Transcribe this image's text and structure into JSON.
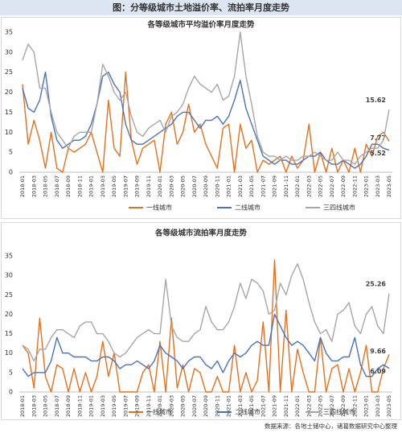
{
  "title": "图：分等级城市土地溢价率、流拍率月度走势",
  "source": "数据来源：各地土储中心，诸葛数据研究中心整理",
  "chart_data": [
    {
      "type": "line",
      "title": "各等级城市平均溢价率月度走势",
      "categories": [
        "2018-01",
        null,
        "2018-03",
        null,
        "2018-05",
        null,
        "2018-07",
        null,
        "2018-09",
        null,
        "2018-11",
        null,
        "2019-01",
        null,
        "2019-03",
        null,
        "2019-05",
        null,
        "2019-07",
        null,
        "2019-09",
        null,
        "2019-11",
        null,
        "2020-01",
        null,
        "2020-03",
        null,
        "2020-05",
        null,
        "2020-07",
        null,
        "2020-09",
        null,
        "2020-11",
        null,
        "2021-01",
        null,
        "2021-03",
        null,
        "2021-05",
        null,
        "2021-07",
        null,
        "2021-09",
        null,
        "2021-11",
        null,
        "2022-01",
        null,
        "2022-03",
        null,
        "2022-05",
        null,
        "2022-07",
        null,
        "2022-09",
        null,
        "2022-11",
        null,
        "2023-01",
        null,
        "2023-03",
        null,
        "2023-05"
      ],
      "ylim": [
        0,
        35
      ],
      "yticks": [
        0,
        5,
        10,
        15,
        20,
        25,
        30,
        35
      ],
      "grid": false,
      "data_labels": "last",
      "legend": "bottom",
      "series": [
        {
          "name": "一线城市",
          "color": "#E2711D",
          "values": [
            22,
            7,
            13,
            8,
            1,
            10,
            1,
            0,
            6,
            5,
            6,
            7,
            10,
            5,
            0,
            18,
            6,
            4,
            25,
            8,
            2,
            6,
            7,
            8,
            0,
            12,
            15,
            7,
            10,
            17,
            10,
            12,
            7,
            4,
            1,
            11,
            12,
            0,
            12,
            6,
            8,
            0,
            3,
            2,
            3,
            4,
            0,
            4,
            1,
            3,
            12,
            0,
            5,
            0,
            6,
            0,
            3,
            0,
            6,
            0,
            7,
            4,
            9,
            10,
            7.77
          ]
        },
        {
          "name": "二线城市",
          "color": "#4A72B8",
          "values": [
            21,
            16,
            15,
            18,
            25,
            14,
            8,
            6,
            7,
            8,
            8,
            9,
            12,
            17,
            24,
            25,
            22,
            20,
            12,
            8,
            7,
            7,
            8,
            9,
            10,
            11,
            12,
            14,
            15,
            15,
            13,
            11,
            13,
            13,
            14,
            12,
            14,
            18,
            23,
            16,
            12,
            8,
            4,
            3,
            2,
            3,
            3,
            2,
            2,
            3,
            4,
            4,
            5,
            3,
            2,
            2,
            3,
            2,
            1,
            2,
            4,
            7,
            7,
            6,
            5.52
          ]
        },
        {
          "name": "三四线城市",
          "color": "#A6A6A6",
          "values": [
            28,
            32,
            30,
            21,
            21,
            15,
            10,
            8,
            6,
            9,
            10,
            10,
            10,
            17,
            27,
            24,
            20,
            18,
            20,
            14,
            10,
            9,
            11,
            12,
            13,
            10,
            14,
            15,
            17,
            21,
            24,
            22,
            21,
            20,
            22,
            18,
            19,
            24,
            35,
            24,
            17,
            9,
            5,
            4,
            4,
            3,
            4,
            3,
            3,
            4,
            4,
            5,
            4,
            3,
            3,
            5,
            3,
            3,
            2,
            4,
            5,
            6,
            6,
            8,
            15.62
          ]
        }
      ]
    },
    {
      "type": "line",
      "title": "各等级城市流拍率月度走势",
      "categories": [
        "2018-01",
        null,
        "2018-03",
        null,
        "2018-05",
        null,
        "2018-07",
        null,
        "2018-09",
        null,
        "2018-11",
        null,
        "2019-01",
        null,
        "2019-03",
        null,
        "2019-05",
        null,
        "2019-07",
        null,
        "2019-09",
        null,
        "2019-11",
        null,
        "2020-01",
        null,
        "2020-03",
        null,
        "2020-05",
        null,
        "2020-07",
        null,
        "2020-09",
        null,
        "2020-11",
        null,
        "2021-01",
        null,
        "2021-03",
        null,
        "2021-05",
        null,
        "2021-07",
        null,
        "2021-09",
        null,
        "2021-11",
        null,
        "2022-01",
        null,
        "2022-03",
        null,
        "2022-05",
        null,
        "2022-07",
        null,
        "2022-09",
        null,
        "2022-11",
        null,
        "2023-01",
        null,
        "2023-03",
        null,
        "2023-05"
      ],
      "ylim": [
        0,
        35
      ],
      "yticks": [
        0,
        5,
        10,
        15,
        20,
        25,
        30,
        35
      ],
      "grid": false,
      "data_labels": "last",
      "legend": "bottom",
      "series": [
        {
          "name": "一线城市",
          "color": "#E2711D",
          "values": [
            12,
            10,
            1,
            19,
            4,
            0,
            7,
            6,
            0,
            6,
            0,
            5,
            0,
            4,
            13,
            4,
            10,
            0,
            0,
            0,
            0,
            5,
            7,
            0,
            13,
            0,
            19,
            1,
            7,
            0,
            6,
            5,
            0,
            0,
            4,
            0,
            0,
            12,
            0,
            5,
            0,
            3,
            18,
            0,
            34,
            0,
            21,
            0,
            11,
            5,
            0,
            0,
            14,
            0,
            6,
            7,
            0,
            6,
            0,
            5,
            12,
            0,
            0,
            6,
            9.66
          ]
        },
        {
          "name": "二线城市",
          "color": "#4A72B8",
          "values": [
            6,
            4,
            5,
            5,
            5,
            8,
            14,
            10,
            10,
            9,
            9,
            9,
            8,
            8,
            9,
            9,
            8,
            6,
            7,
            7,
            8,
            7,
            6,
            8,
            12,
            10,
            9,
            8,
            6,
            8,
            9,
            9,
            7,
            6,
            8,
            5,
            8,
            10,
            9,
            10,
            12,
            13,
            12,
            12,
            20,
            17,
            14,
            12,
            13,
            12,
            10,
            8,
            14,
            10,
            8,
            8,
            9,
            9,
            14,
            7,
            4,
            4,
            6,
            7,
            6.09
          ]
        },
        {
          "name": "三四线城市",
          "color": "#A6A6A6",
          "values": [
            12,
            11,
            8,
            11,
            11,
            14,
            16,
            16,
            15,
            14,
            17,
            18,
            18,
            15,
            15,
            13,
            10,
            9,
            10,
            12,
            14,
            15,
            16,
            15,
            15,
            29,
            17,
            14,
            13,
            13,
            15,
            16,
            22,
            18,
            16,
            16,
            18,
            22,
            28,
            24,
            29,
            28,
            26,
            20,
            21,
            28,
            25,
            30,
            33,
            29,
            23,
            18,
            15,
            16,
            13,
            20,
            21,
            23,
            17,
            15,
            20,
            22,
            17,
            15,
            25.26
          ]
        }
      ]
    }
  ]
}
